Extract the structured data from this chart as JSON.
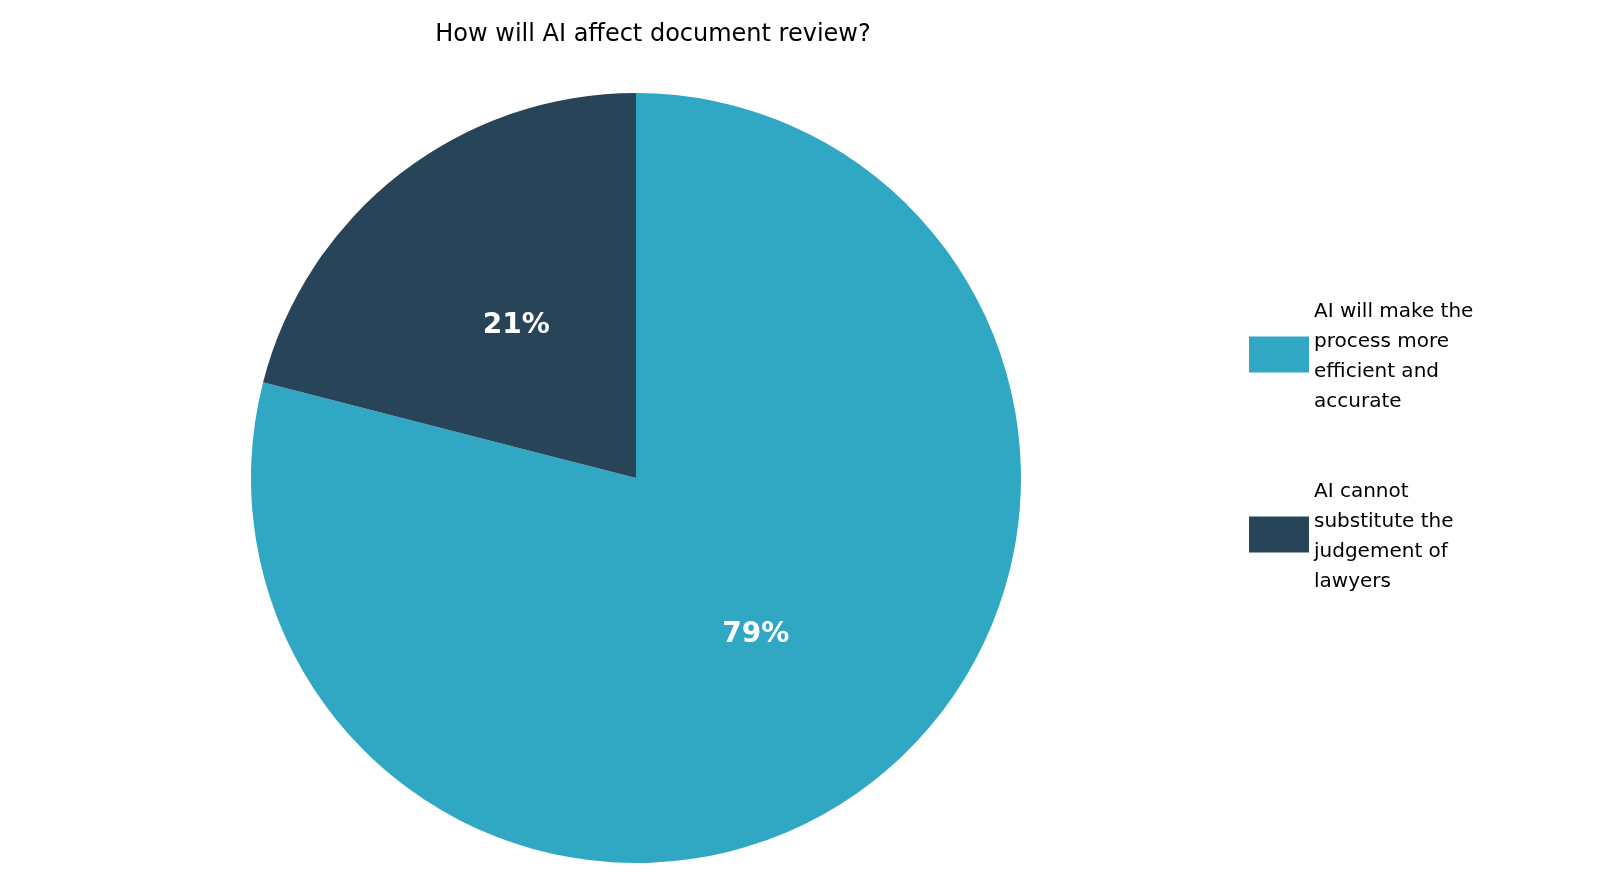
{
  "chart_data": {
    "type": "pie",
    "title": "How will AI affect document review?",
    "categories": [
      "AI will make the process more efficient and accurate",
      "AI cannot substitute the judgement of lawyers"
    ],
    "values": [
      79,
      21
    ],
    "colors": [
      "#31a8c3",
      "#284459"
    ],
    "value_labels": [
      "79%",
      "21%"
    ],
    "legend": "right"
  }
}
